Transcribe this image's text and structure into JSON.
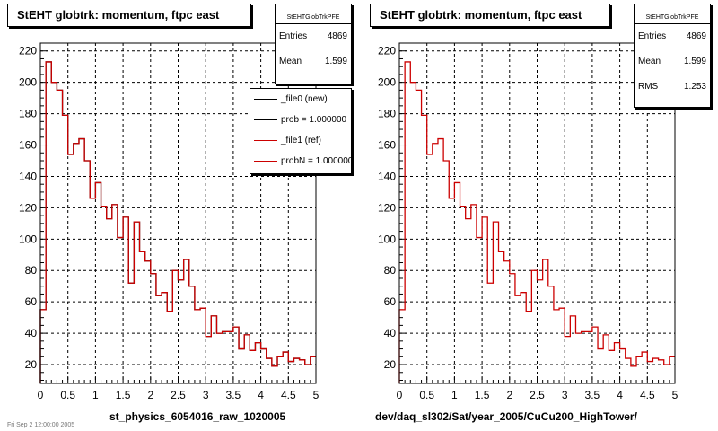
{
  "panels": [
    {
      "title": "StEHT globtrk: momentum, ftpc east",
      "stats": {
        "name": "StEHTGlobTrkPFE",
        "rows": [
          {
            "label": "Entries",
            "value": "4869"
          },
          {
            "label": "Mean",
            "value": "1.599"
          }
        ]
      },
      "legend": [
        {
          "text": "_file0 (new)",
          "color": "#000000"
        },
        {
          "text": "prob = 1.000000",
          "color": "#000000"
        },
        {
          "text": "_file1 (ref)",
          "color": "#cc0000"
        },
        {
          "text": "probN = 1.000000",
          "color": "#cc0000"
        }
      ],
      "xcaption": "st_physics_6054016_raw_1020005"
    },
    {
      "title": "StEHT globtrk: momentum, ftpc east",
      "stats": {
        "name": "StEHTGlobTrkPFE",
        "rows": [
          {
            "label": "Entries",
            "value": "4869"
          },
          {
            "label": "Mean",
            "value": "1.599"
          },
          {
            "label": "RMS",
            "value": "1.253"
          }
        ]
      },
      "legend": [],
      "xcaption": "dev/daq_sl302/Sat/year_2005/CuCu200_HighTower/"
    }
  ],
  "footer": "Fri Sep 2 12:00:00 2005",
  "chart_data": [
    {
      "type": "line",
      "title": "StEHT globtrk: momentum, ftpc east",
      "xlabel": "st_physics_6054016_raw_1020005",
      "ylabel": "",
      "xlim": [
        0,
        5
      ],
      "ylim": [
        8,
        225
      ],
      "xticks": [
        0,
        0.5,
        1,
        1.5,
        2,
        2.5,
        3,
        3.5,
        4,
        4.5,
        5
      ],
      "yticks": [
        20,
        40,
        60,
        80,
        100,
        120,
        140,
        160,
        180,
        200,
        220
      ],
      "grid": true,
      "legend": "top-right",
      "bin_edges": [
        0,
        0.1,
        0.2,
        0.3,
        0.4,
        0.5,
        0.6,
        0.7,
        0.8,
        0.9,
        1.0,
        1.1,
        1.2,
        1.3,
        1.4,
        1.5,
        1.6,
        1.7,
        1.8,
        1.9,
        2.0,
        2.1,
        2.2,
        2.3,
        2.4,
        2.5,
        2.6,
        2.7,
        2.8,
        2.9,
        3.0,
        3.1,
        3.2,
        3.3,
        3.4,
        3.5,
        3.6,
        3.7,
        3.8,
        3.9,
        4.0,
        4.1,
        4.2,
        4.3,
        4.4,
        4.5,
        4.6,
        4.7,
        4.8,
        4.9,
        5.0
      ],
      "series": [
        {
          "name": "_file0 (new)",
          "color": "#000000",
          "values": [
            55,
            213,
            200,
            195,
            179,
            154,
            161,
            164,
            150,
            126,
            136,
            121,
            113,
            122,
            101,
            114,
            72,
            111,
            92,
            86,
            78,
            64,
            66,
            54,
            80,
            74,
            87,
            70,
            55,
            56,
            38,
            51,
            40,
            41,
            41,
            44,
            30,
            39,
            29,
            34,
            30,
            24,
            19,
            25,
            28,
            22,
            24,
            23,
            20,
            25
          ]
        },
        {
          "name": "_file1 (ref)",
          "color": "#cc0000",
          "values": [
            55,
            213,
            200,
            195,
            179,
            154,
            161,
            164,
            150,
            126,
            136,
            121,
            113,
            122,
            101,
            114,
            72,
            111,
            92,
            86,
            78,
            64,
            66,
            54,
            80,
            74,
            87,
            70,
            55,
            56,
            38,
            51,
            40,
            41,
            41,
            44,
            30,
            39,
            29,
            34,
            30,
            24,
            19,
            25,
            28,
            22,
            24,
            23,
            20,
            25
          ]
        }
      ]
    },
    {
      "type": "line",
      "title": "StEHT globtrk: momentum, ftpc east",
      "xlabel": "dev/daq_sl302/Sat/year_2005/CuCu200_HighTower/",
      "ylabel": "",
      "xlim": [
        0,
        5
      ],
      "ylim": [
        8,
        225
      ],
      "xticks": [
        0,
        0.5,
        1,
        1.5,
        2,
        2.5,
        3,
        3.5,
        4,
        4.5,
        5
      ],
      "yticks": [
        20,
        40,
        60,
        80,
        100,
        120,
        140,
        160,
        180,
        200,
        220
      ],
      "grid": true,
      "bin_edges": [
        0,
        0.1,
        0.2,
        0.3,
        0.4,
        0.5,
        0.6,
        0.7,
        0.8,
        0.9,
        1.0,
        1.1,
        1.2,
        1.3,
        1.4,
        1.5,
        1.6,
        1.7,
        1.8,
        1.9,
        2.0,
        2.1,
        2.2,
        2.3,
        2.4,
        2.5,
        2.6,
        2.7,
        2.8,
        2.9,
        3.0,
        3.1,
        3.2,
        3.3,
        3.4,
        3.5,
        3.6,
        3.7,
        3.8,
        3.9,
        4.0,
        4.1,
        4.2,
        4.3,
        4.4,
        4.5,
        4.6,
        4.7,
        4.8,
        4.9,
        5.0
      ],
      "series": [
        {
          "name": "_file1 (ref)",
          "color": "#cc0000",
          "values": [
            55,
            213,
            200,
            195,
            179,
            154,
            161,
            164,
            150,
            126,
            136,
            121,
            113,
            122,
            101,
            114,
            72,
            111,
            92,
            86,
            78,
            64,
            66,
            54,
            80,
            74,
            87,
            70,
            55,
            56,
            38,
            51,
            40,
            41,
            41,
            44,
            30,
            39,
            29,
            34,
            30,
            24,
            19,
            25,
            28,
            22,
            24,
            23,
            20,
            25
          ]
        }
      ]
    }
  ]
}
